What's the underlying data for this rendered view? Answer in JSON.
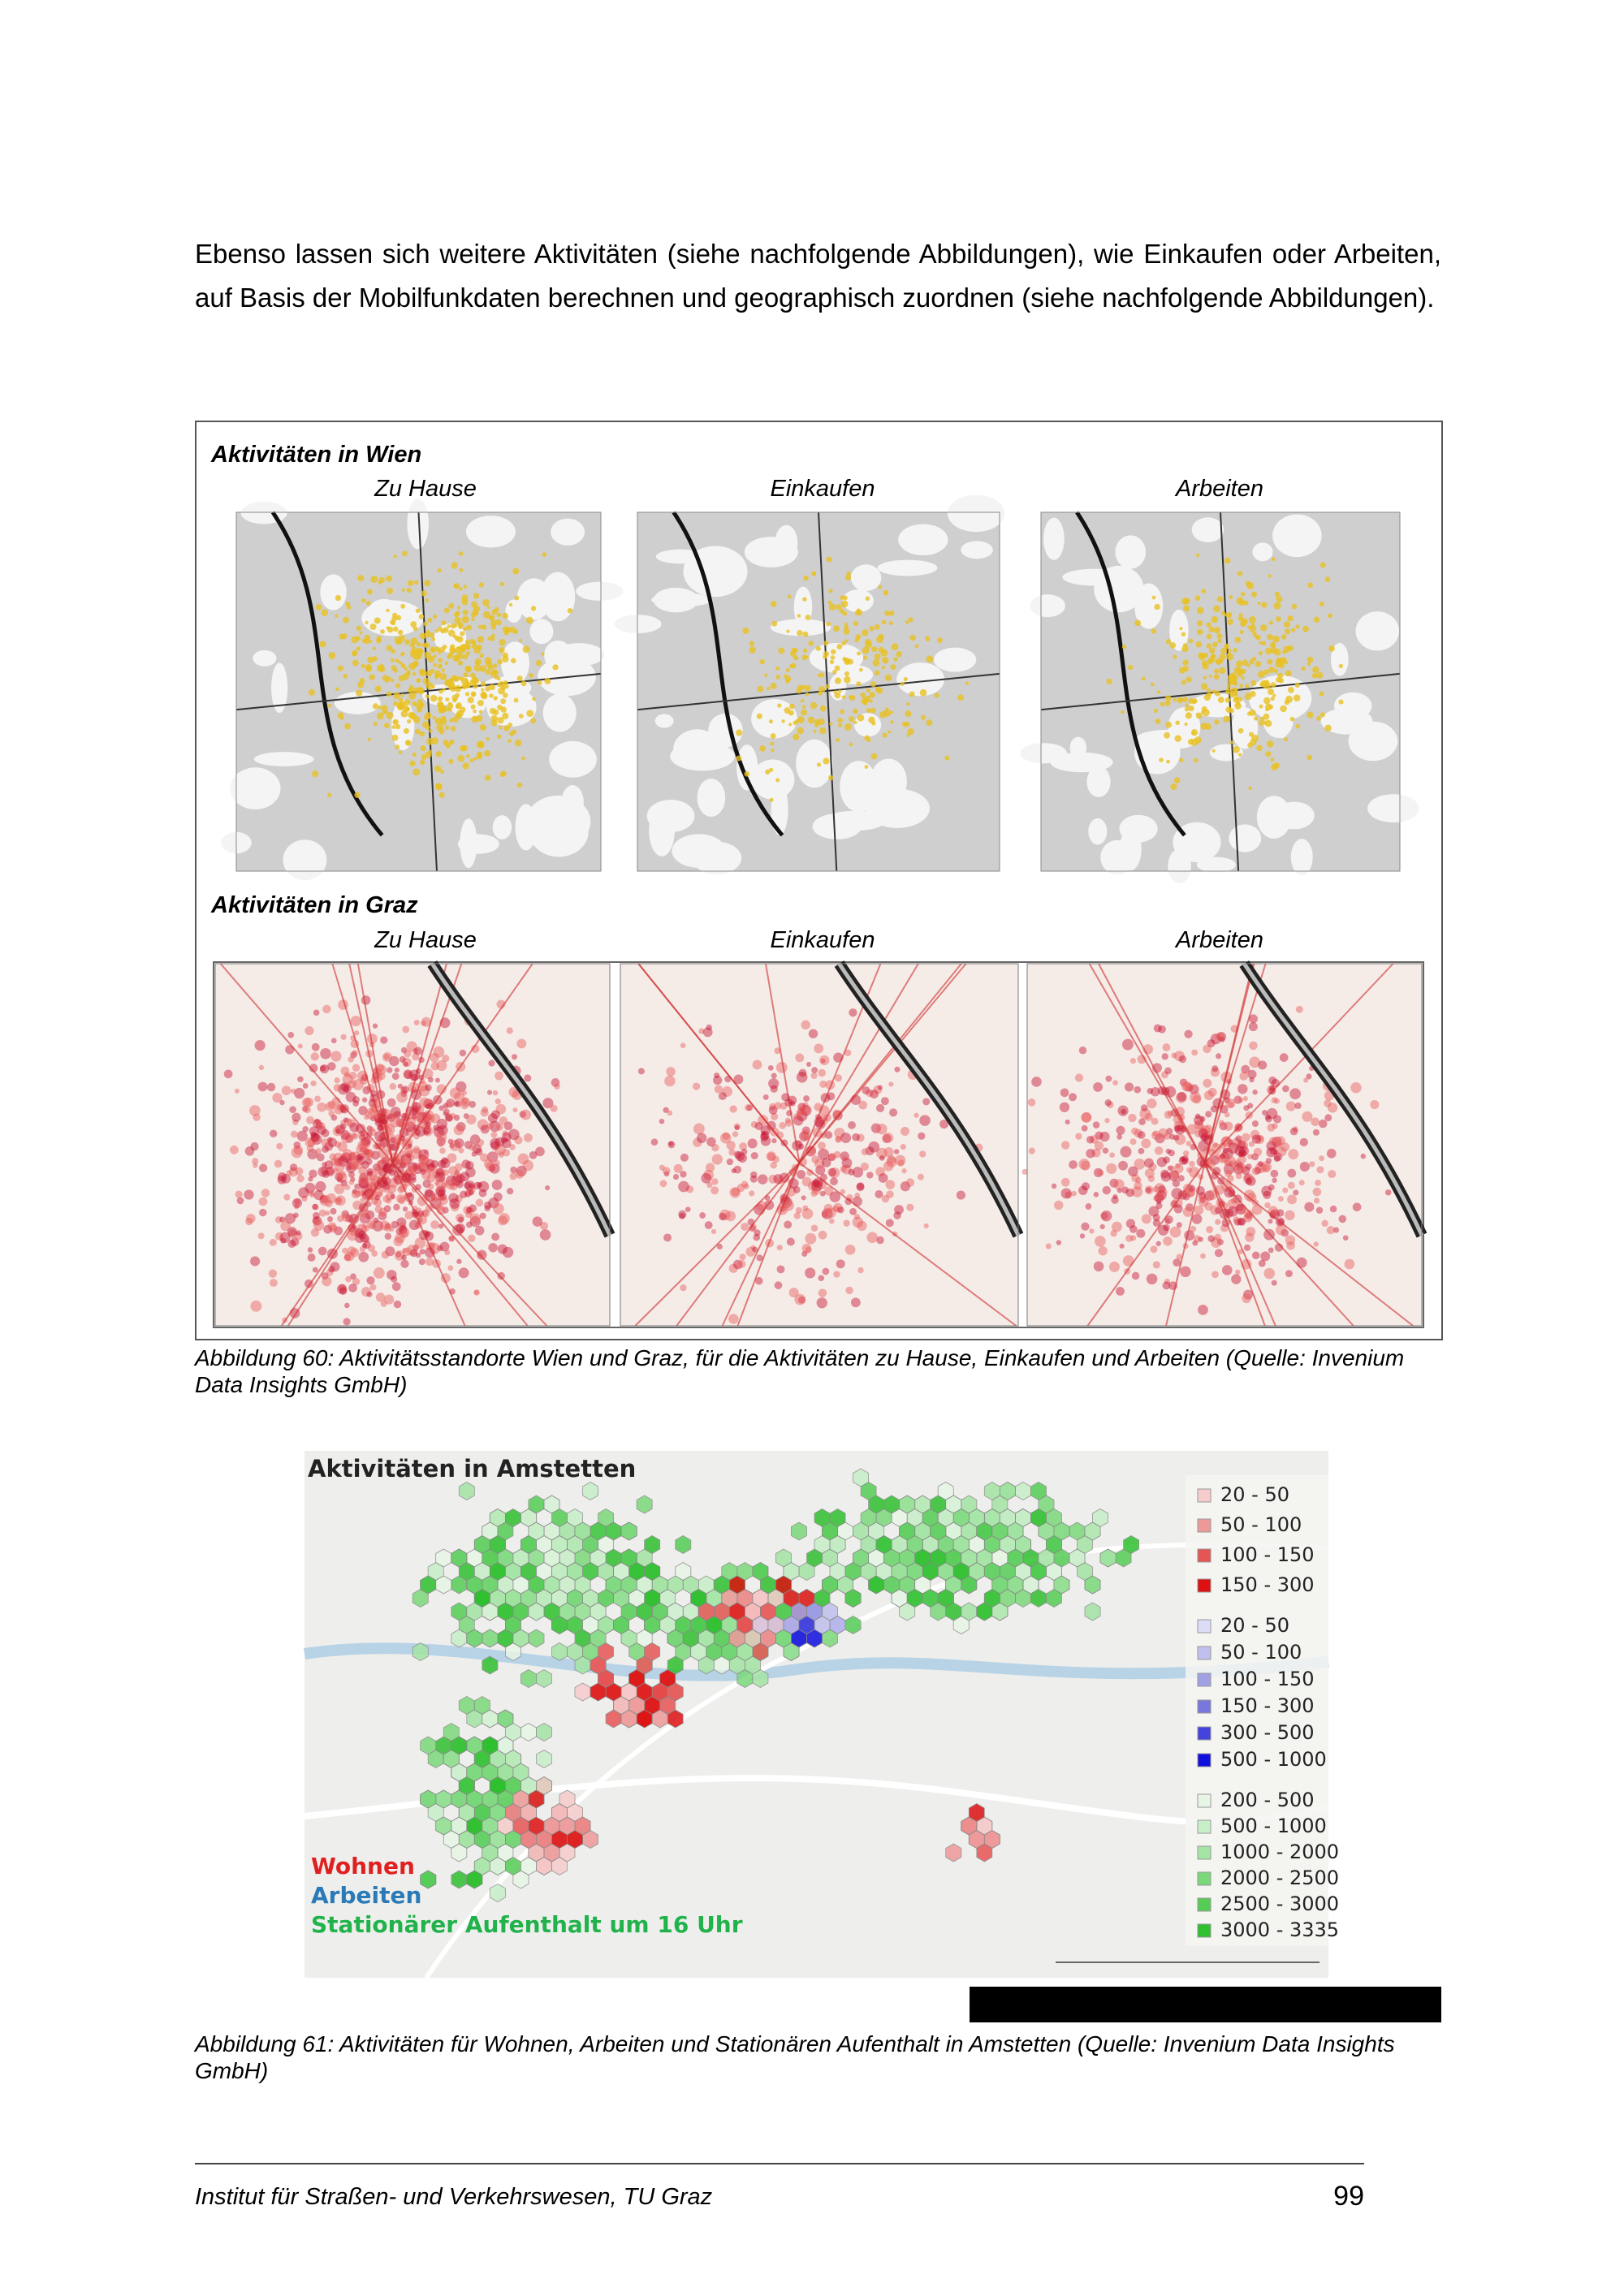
{
  "paragraph": "Ebenso lassen sich weitere Aktivitäten (siehe nachfolgende Abbildungen), wie Einkaufen oder Arbeiten, auf Basis der Mobilfunkdaten berechnen und geographisch zuordnen (siehe nachfolgende Abbildungen).",
  "figure_60": {
    "section_1": {
      "title": "Aktivitäten in Wien",
      "labels": [
        "Zu Hause",
        "Einkaufen",
        "Arbeiten"
      ]
    },
    "section_2": {
      "title": "Aktivitäten in Graz",
      "labels": [
        "Zu Hause",
        "Einkaufen",
        "Arbeiten"
      ]
    },
    "caption": "Abbildung 60: Aktivitätsstandorte Wien und Graz, für die Aktivitäten zu Hause, Einkaufen und Arbeiten (Quelle: Invenium Data Insights GmbH)"
  },
  "figure_61": {
    "title": "Aktivitäten in Amstetten",
    "legend_wohnen": [
      "20 - 50",
      "50 - 100",
      "100 - 150",
      "150 - 300"
    ],
    "legend_arbeiten": [
      "20 - 50",
      "50 - 100",
      "100 - 150",
      "150 - 300",
      "300 - 500",
      "500 - 1000"
    ],
    "legend_aufenthalt": [
      "200 - 500",
      "500 - 1000",
      "1000 - 2000",
      "2000 - 2500",
      "2500 - 3000",
      "3000 - 3335"
    ],
    "labels": [
      "Wohnen",
      "Arbeiten",
      "Stationärer Aufenthalt um 16 Uhr"
    ],
    "caption": "Abbildung 61: Aktivitäten für Wohnen, Arbeiten und Stationären Aufenthalt in Amstetten (Quelle: Invenium Data Insights GmbH)"
  },
  "footer": {
    "institute": "Institut für Straßen- und Verkehrswesen, TU Graz",
    "page_number": "99"
  }
}
